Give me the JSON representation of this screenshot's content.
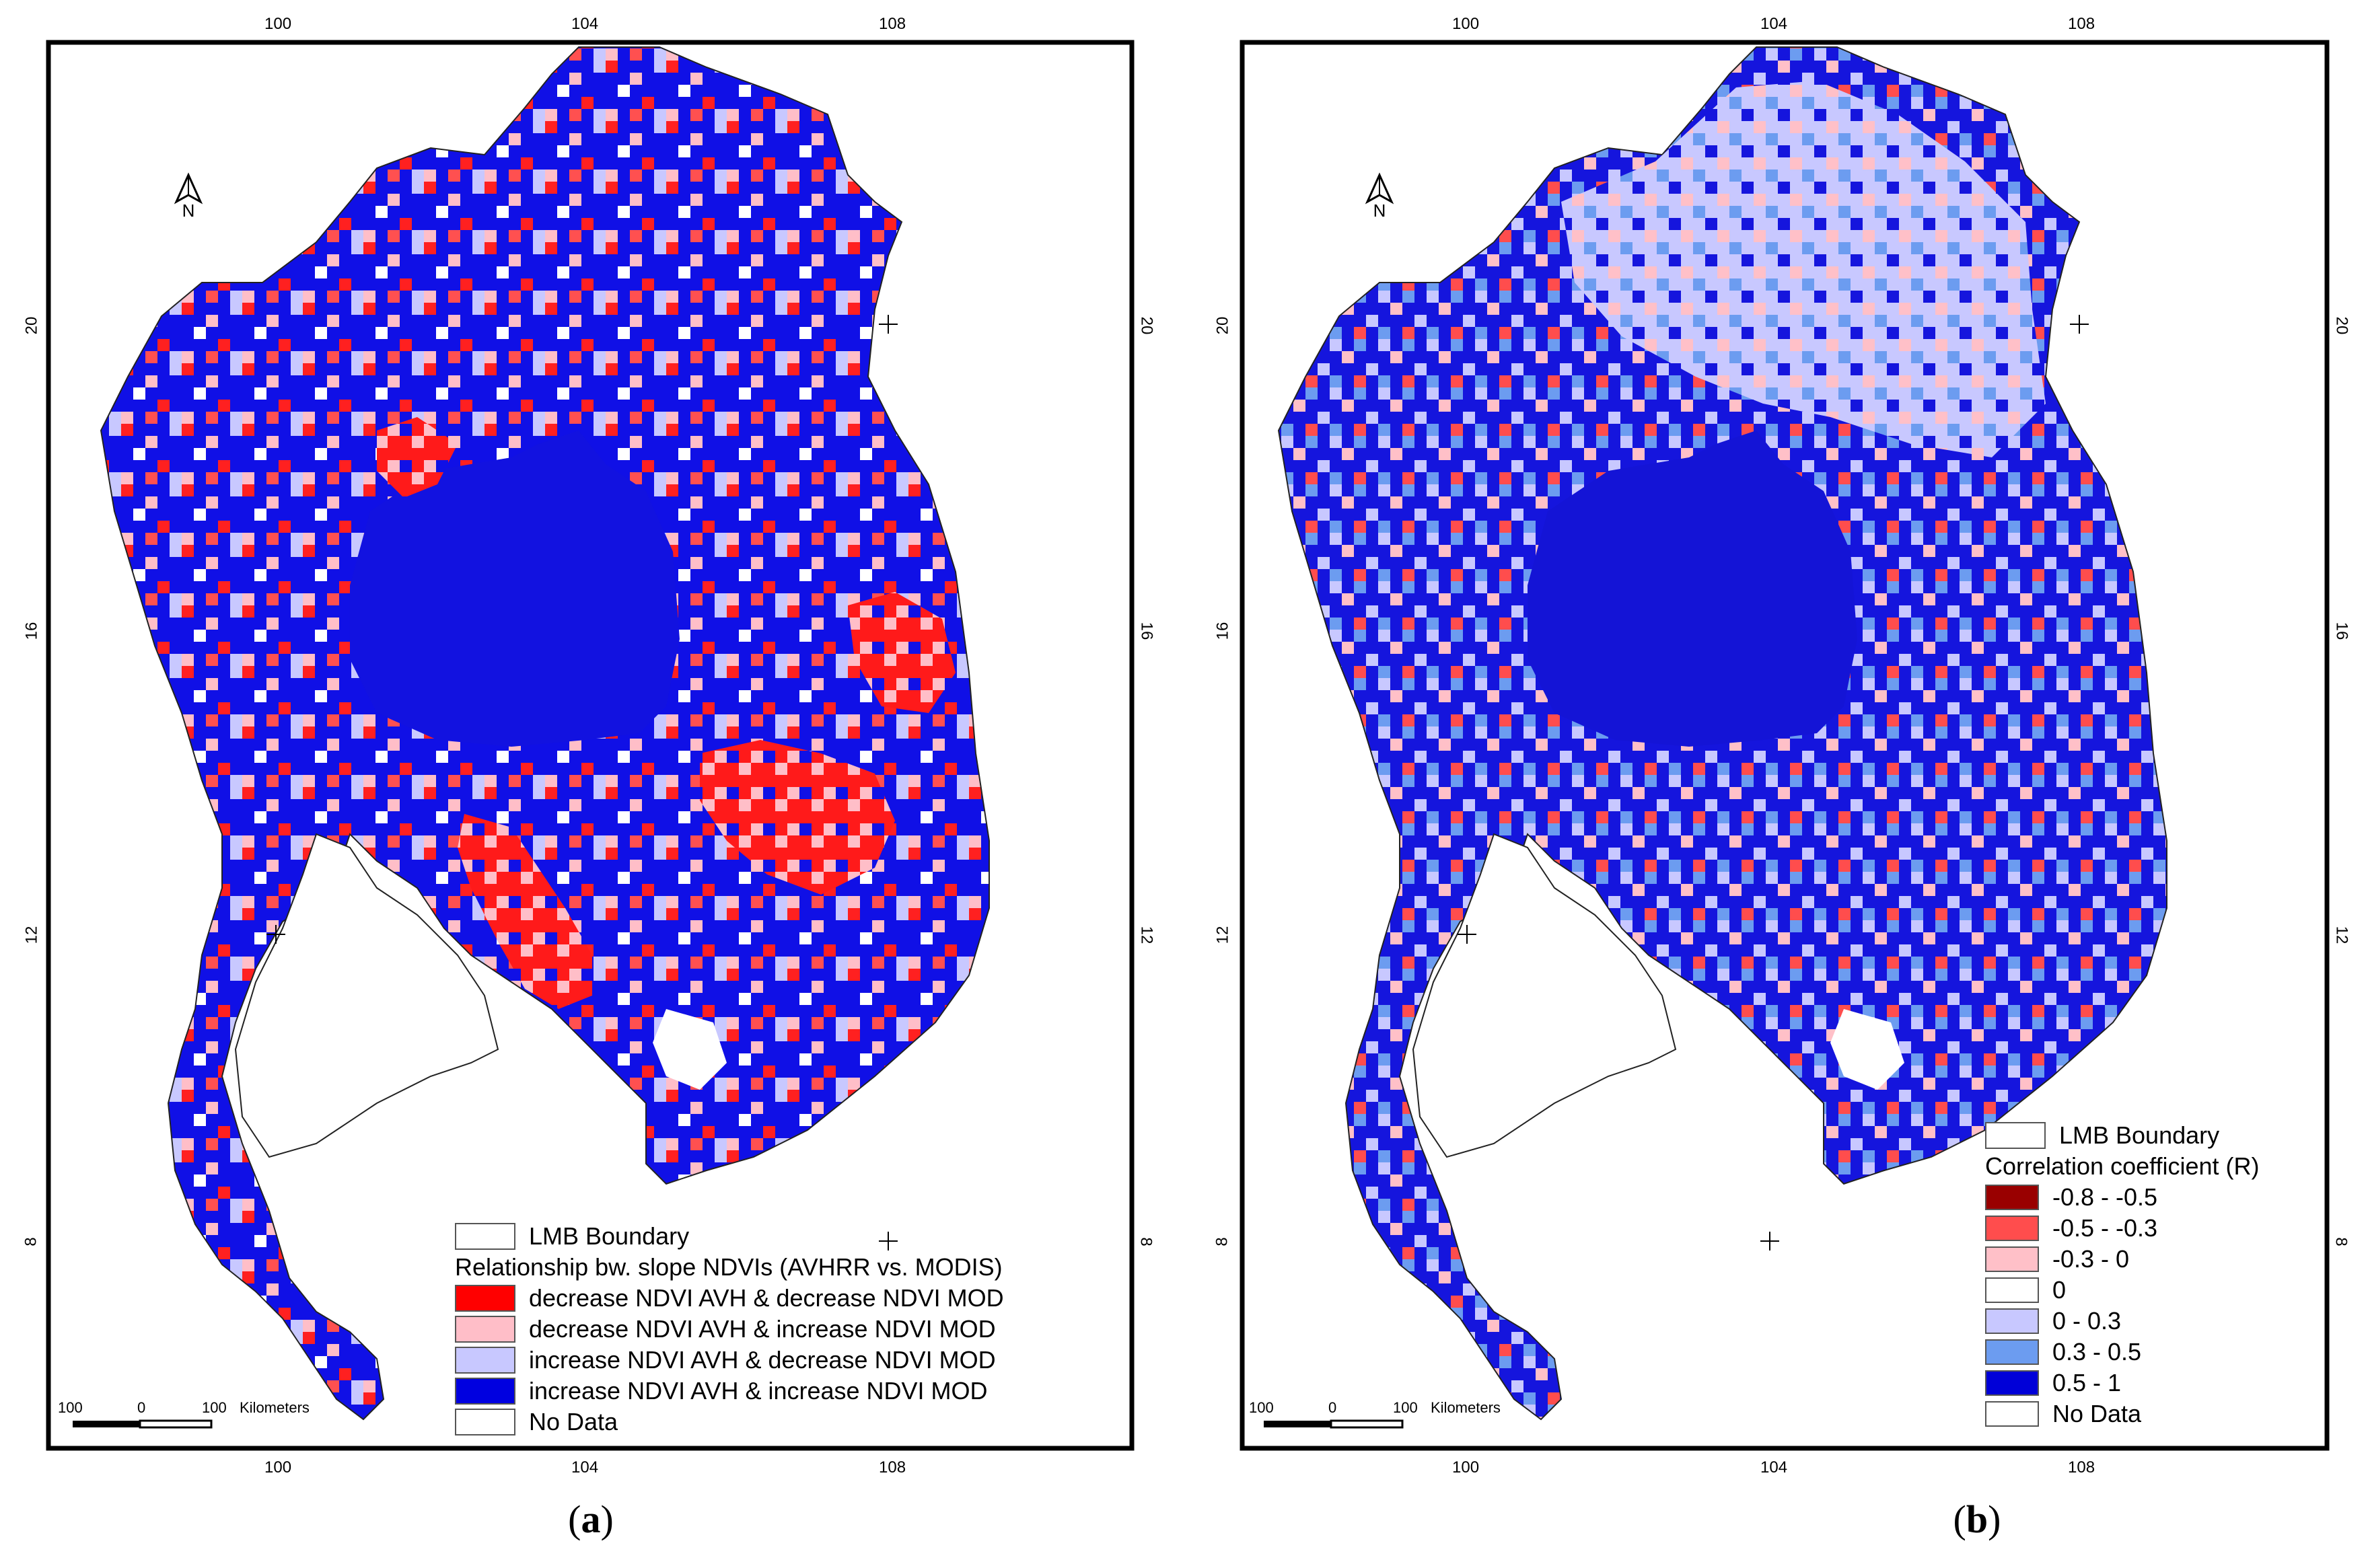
{
  "panels": [
    {
      "caption": "a",
      "top_ticks": [
        "100",
        "104",
        "108"
      ],
      "bottom_ticks": [
        "100",
        "104",
        "108"
      ],
      "left_ticks": [
        "20",
        "16",
        "12",
        "8"
      ],
      "right_ticks": [
        "20",
        "16",
        "12",
        "8"
      ],
      "north": "N",
      "scale": {
        "left": "100",
        "mid": "0",
        "right": "100",
        "unit": "Kilometers"
      },
      "legend": {
        "boundary": "LMB Boundary",
        "title": "Relationship bw. slope NDVIs (AVHRR vs. MODIS)",
        "items": [
          {
            "label": "decrease NDVI AVH & decrease NDVI MOD",
            "color": "#ff0000"
          },
          {
            "label": "decrease NDVI AVH & increase NDVI MOD",
            "color": "#ffbec8"
          },
          {
            "label": "increase NDVI AVH & decrease NDVI MOD",
            "color": "#c8c8ff"
          },
          {
            "label": "increase NDVI AVH & increase NDVI MOD",
            "color": "#0000e0"
          },
          {
            "label": "No Data",
            "color": "#ffffff"
          }
        ]
      }
    },
    {
      "caption": "b",
      "top_ticks": [
        "100",
        "104",
        "108"
      ],
      "bottom_ticks": [
        "100",
        "104",
        "108"
      ],
      "left_ticks": [
        "20",
        "16",
        "12",
        "8"
      ],
      "right_ticks": [
        "20",
        "16",
        "12",
        "8"
      ],
      "north": "N",
      "scale": {
        "left": "100",
        "mid": "0",
        "right": "100",
        "unit": "Kilometers"
      },
      "legend": {
        "boundary": "LMB Boundary",
        "title": "Correlation coefficient (R)",
        "items": [
          {
            "label": "-0.8 - -0.5",
            "color": "#990000"
          },
          {
            "label": "-0.5 - -0.3",
            "color": "#ff4d4d"
          },
          {
            "label": "-0.3 - 0",
            "color": "#ffc0c8"
          },
          {
            "label": "0",
            "color": "#ffffff"
          },
          {
            "label": "0 - 0.3",
            "color": "#c8c8ff"
          },
          {
            "label": "0.3 - 0.5",
            "color": "#6c9cf0"
          },
          {
            "label": "0.5 - 1",
            "color": "#0000d8"
          },
          {
            "label": "No Data",
            "color": "#ffffff"
          }
        ]
      }
    }
  ],
  "colors": {
    "frame": "#000000",
    "land_a_base": "#1010e6",
    "land_b_base": "#1515dd",
    "gulf_water": "#ffffff"
  }
}
